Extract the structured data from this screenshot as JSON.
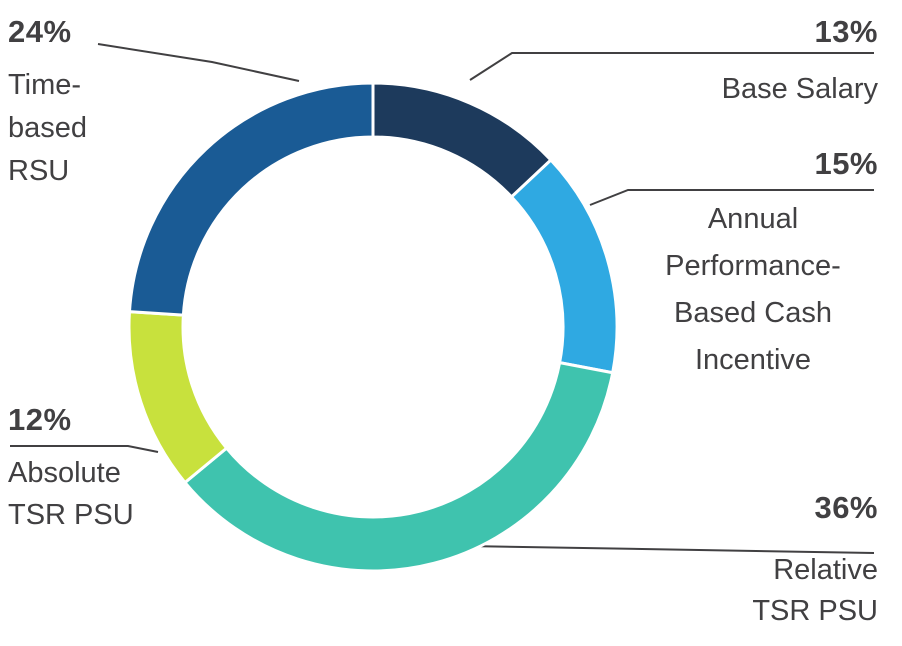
{
  "page": {
    "background": "#ffffff",
    "text_color": "#414042",
    "callout_line_color": "#414042"
  },
  "chart_data": {
    "type": "pie",
    "subtype": "donut",
    "title": "",
    "direction": "clockwise",
    "start_angle_deg": 0,
    "inner_radius_ratio": 0.78,
    "gap_color": "#ffffff",
    "legend_position": "callout-labels",
    "total": 100,
    "slices": [
      {
        "label": "Base Salary",
        "value": 13,
        "pct": "13%",
        "color": "#1d3a5c",
        "label_lines": [
          "Base Salary"
        ]
      },
      {
        "label": "Annual Performance-Based Cash Incentive",
        "value": 15,
        "pct": "15%",
        "color": "#2fa9e2",
        "label_lines": [
          "Annual",
          "Performance-",
          "Based Cash",
          "Incentive"
        ]
      },
      {
        "label": "Relative TSR PSU",
        "value": 36,
        "pct": "36%",
        "color": "#3fc3ae",
        "label_lines": [
          "Relative",
          "TSR PSU"
        ]
      },
      {
        "label": "Absolute TSR PSU",
        "value": 12,
        "pct": "12%",
        "color": "#c8e13d",
        "label_lines": [
          "Absolute",
          "TSR PSU"
        ]
      },
      {
        "label": "Time-based RSU",
        "value": 24,
        "pct": "24%",
        "color": "#1a5b95",
        "label_lines": [
          "Time-",
          "based",
          "RSU"
        ]
      }
    ]
  }
}
